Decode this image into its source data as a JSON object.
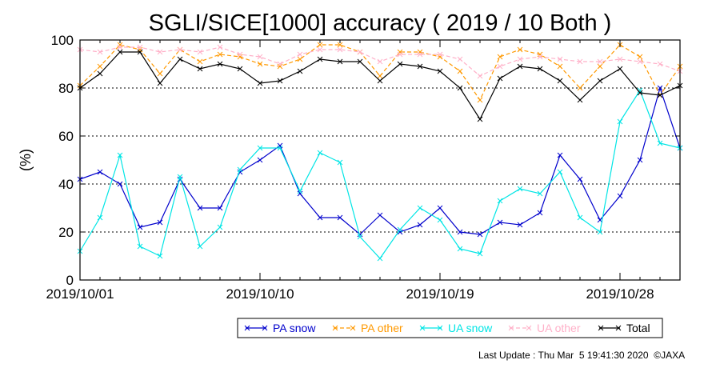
{
  "chart_data": {
    "type": "line",
    "title": "SGLI/SICE[1000] accuracy ( 2019 / 10 Both )",
    "xlabel": "",
    "ylabel": "(%)",
    "ylim": [
      0,
      100
    ],
    "yticks": [
      0,
      20,
      40,
      60,
      80,
      100
    ],
    "xticks": [
      "2019/10/01",
      "2019/10/10",
      "2019/10/19",
      "2019/10/28"
    ],
    "grid": "horizontal dotted at 20, 40, 60, 80",
    "x": [
      "2019/10/01",
      "2019/10/02",
      "2019/10/03",
      "2019/10/04",
      "2019/10/05",
      "2019/10/06",
      "2019/10/07",
      "2019/10/08",
      "2019/10/09",
      "2019/10/10",
      "2019/10/11",
      "2019/10/12",
      "2019/10/13",
      "2019/10/14",
      "2019/10/15",
      "2019/10/16",
      "2019/10/17",
      "2019/10/18",
      "2019/10/19",
      "2019/10/20",
      "2019/10/21",
      "2019/10/22",
      "2019/10/23",
      "2019/10/24",
      "2019/10/25",
      "2019/10/26",
      "2019/10/27",
      "2019/10/28",
      "2019/10/29",
      "2019/10/30",
      "2019/10/31"
    ],
    "series": [
      {
        "name": "PA snow",
        "color": "#0000cc",
        "dash": "solid",
        "values": [
          42,
          45,
          40,
          22,
          24,
          42,
          30,
          30,
          45,
          50,
          56,
          36,
          26,
          26,
          19,
          27,
          20,
          23,
          30,
          20,
          19,
          24,
          23,
          28,
          52,
          42,
          25,
          35,
          50,
          80,
          55
        ]
      },
      {
        "name": "PA other",
        "color": "#ff9900",
        "dash": "dashed",
        "values": [
          81,
          89,
          98,
          96,
          86,
          96,
          91,
          94,
          93,
          90,
          89,
          92,
          98,
          98,
          95,
          85,
          95,
          95,
          93,
          87,
          75,
          93,
          96,
          94,
          89,
          80,
          89,
          98,
          93,
          77,
          89
        ]
      },
      {
        "name": "UA snow",
        "color": "#00e5e5",
        "dash": "solid",
        "values": [
          12,
          26,
          52,
          14,
          10,
          43,
          14,
          22,
          46,
          55,
          55,
          37,
          53,
          49,
          18,
          9,
          21,
          30,
          25,
          13,
          11,
          33,
          38,
          36,
          45,
          26,
          20,
          66,
          79,
          57,
          55
        ]
      },
      {
        "name": "UA other",
        "color": "#ffb0c8",
        "dash": "dashed",
        "values": [
          96,
          95,
          97,
          97,
          95,
          96,
          95,
          97,
          94,
          93,
          90,
          94,
          96,
          96,
          95,
          91,
          94,
          94,
          94,
          92,
          85,
          89,
          92,
          93,
          92,
          91,
          91,
          92,
          91,
          90,
          87
        ]
      },
      {
        "name": "Total",
        "color": "#000000",
        "dash": "solid",
        "values": [
          80,
          86,
          95,
          95,
          82,
          92,
          88,
          90,
          88,
          82,
          83,
          87,
          92,
          91,
          91,
          83,
          90,
          89,
          87,
          80,
          67,
          84,
          89,
          88,
          83,
          75,
          83,
          88,
          78,
          77,
          81
        ]
      }
    ],
    "legend": "bottom-right"
  },
  "footer": "Last Update : Thu Mar  5 19:41:30 2020  ©JAXA"
}
